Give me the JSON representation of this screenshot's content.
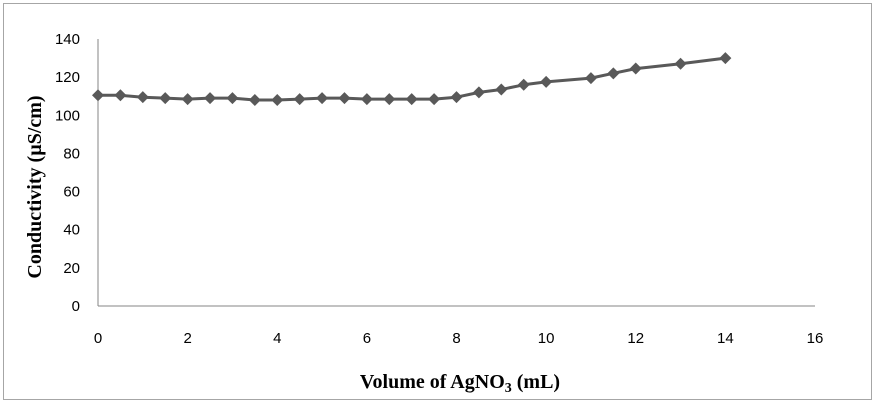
{
  "chart_data": {
    "type": "line",
    "title": "",
    "xlabel_prefix": "Volume of AgNO",
    "xlabel_subscript": "3",
    "xlabel_suffix": " (mL)",
    "ylabel": "Conductivity (µS/cm)",
    "xlim": [
      0,
      16
    ],
    "ylim": [
      0,
      140
    ],
    "xticks": [
      0,
      2,
      4,
      6,
      8,
      10,
      12,
      14,
      16
    ],
    "yticks": [
      0,
      20,
      40,
      60,
      80,
      100,
      120,
      140
    ],
    "grid": false,
    "legend": "none",
    "series": [
      {
        "color": "#595959",
        "marker": "diamond",
        "x": [
          0,
          0.5,
          1,
          1.5,
          2,
          2.5,
          3,
          3.5,
          4,
          4.5,
          5,
          5.5,
          6,
          6.5,
          7,
          7.5,
          8,
          8.5,
          9,
          9.5,
          10,
          11,
          11.5,
          12,
          13,
          14
        ],
        "y": [
          110.5,
          110.5,
          109.5,
          109,
          108.5,
          109,
          109,
          108,
          108,
          108.5,
          109,
          109,
          108.5,
          108.5,
          108.5,
          108.5,
          109.5,
          112,
          113.5,
          116,
          117.5,
          119.5,
          122,
          124.5,
          127,
          130
        ]
      }
    ]
  }
}
